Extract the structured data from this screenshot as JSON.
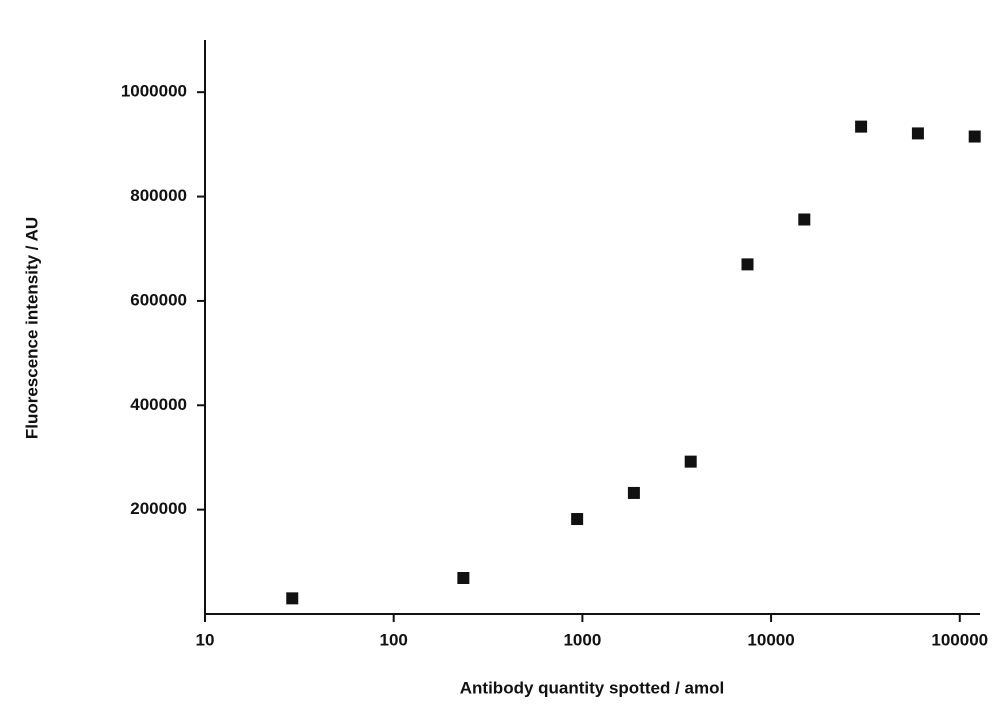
{
  "chart_data": {
    "type": "scatter",
    "x_label": "Antibody quantity spotted / amol",
    "y_label": "Fluorescence intensity / AU",
    "x": [
      29,
      234,
      938,
      1875,
      3750,
      7500,
      15000,
      30000,
      60000,
      120000
    ],
    "y": [
      30000,
      69000,
      182000,
      232000,
      292000,
      670000,
      756000,
      934000,
      921000,
      915000
    ],
    "color": "#111111",
    "xlog": true,
    "xlim": [
      10,
      128000
    ],
    "xticks": [
      10,
      100,
      1000,
      10000,
      100000
    ],
    "ylim": [
      0,
      1100000
    ],
    "yticks": [
      200000,
      400000,
      600000,
      800000,
      1000000
    ]
  }
}
